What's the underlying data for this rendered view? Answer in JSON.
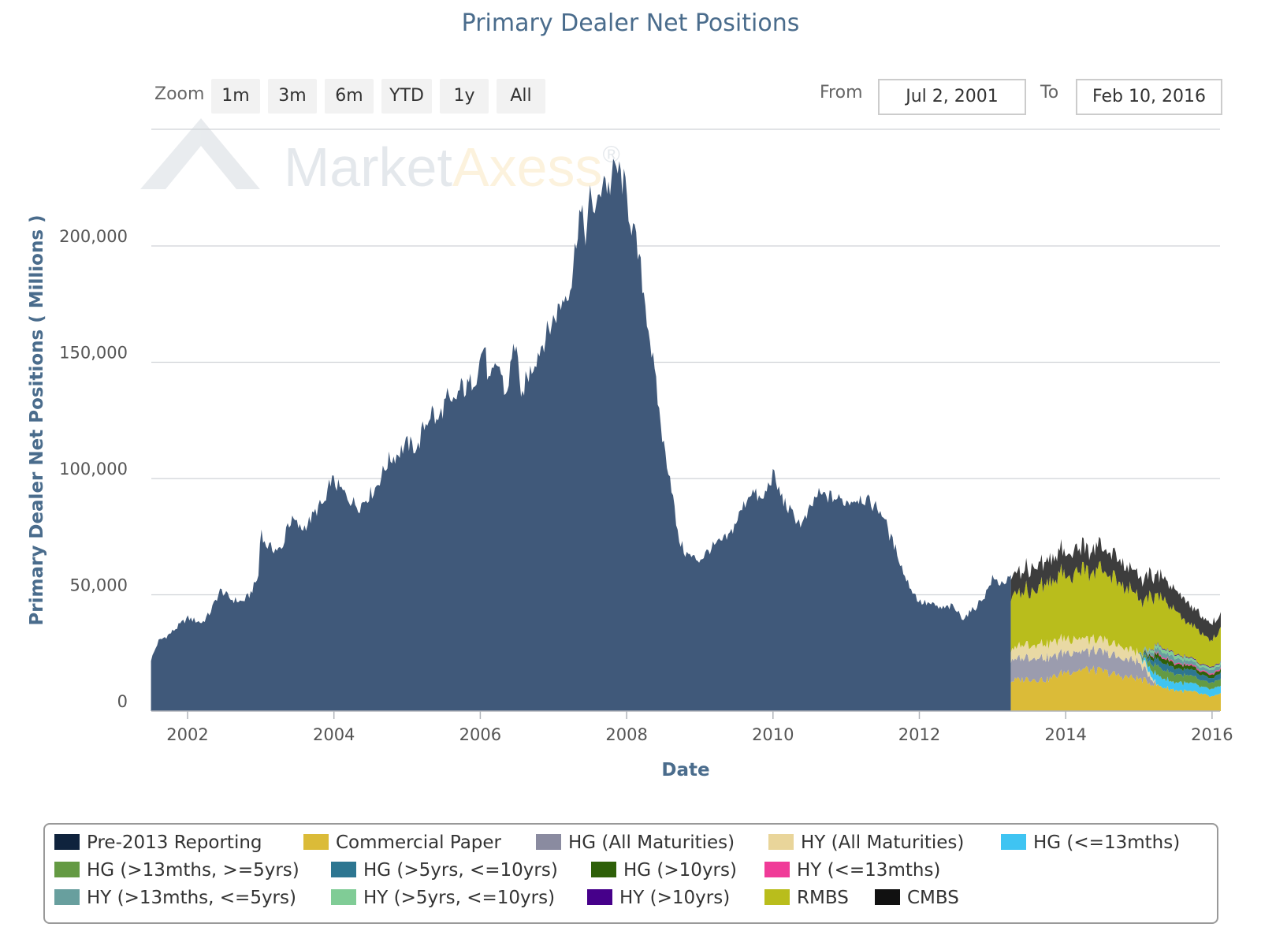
{
  "header": {
    "title": "Primary Dealer Net Positions",
    "zoom_label": "Zoom",
    "zoom_buttons": [
      "1m",
      "3m",
      "6m",
      "YTD",
      "1y",
      "All"
    ],
    "from_label": "From",
    "from_value": "Jul 2, 2001",
    "to_label": "To",
    "to_value": "Feb 10, 2016"
  },
  "watermark": {
    "text_main": "Market",
    "text_accent": "Axess",
    "mark": "®"
  },
  "chart_data": {
    "type": "area",
    "title": "Primary Dealer Net Positions",
    "xlabel": "Date",
    "ylabel": "Primary Dealer Net Positions ( Millions )",
    "xlim": [
      "2001-07-02",
      "2016-02-10"
    ],
    "ylim": [
      0,
      240000
    ],
    "x_ticks": [
      "2002",
      "2004",
      "2006",
      "2008",
      "2010",
      "2012",
      "2014",
      "2016"
    ],
    "y_ticks": [
      0,
      50000,
      100000,
      150000,
      200000
    ],
    "y_tick_labels": [
      "0",
      "50,000",
      "100,000",
      "150,000",
      "200,000"
    ],
    "grid": "horizontal",
    "legend_placement": "bottom",
    "stacked": true,
    "series": [
      {
        "name": "Pre-2013 Reporting",
        "color": "#40597a",
        "x": [
          2001.5,
          2001.6,
          2001.75,
          2002.0,
          2002.2,
          2002.3,
          2002.45,
          2002.6,
          2002.75,
          2002.85,
          2002.97,
          2003.0,
          2003.05,
          2003.15,
          2003.3,
          2003.35,
          2003.45,
          2003.55,
          2003.65,
          2003.8,
          2003.9,
          2003.95,
          2004.1,
          2004.25,
          2004.35,
          2004.45,
          2004.55,
          2004.6,
          2004.75,
          2004.85,
          2005.0,
          2005.15,
          2005.2,
          2005.35,
          2005.4,
          2005.55,
          2005.6,
          2005.75,
          2005.8,
          2005.95,
          2006.05,
          2006.12,
          2006.25,
          2006.35,
          2006.45,
          2006.5,
          2006.55,
          2006.6,
          2006.8,
          2006.95,
          2007.1,
          2007.25,
          2007.35,
          2007.45,
          2007.5,
          2007.6,
          2007.68,
          2007.75,
          2007.85,
          2007.95,
          2008.1,
          2008.2,
          2008.3,
          2008.4,
          2008.5,
          2008.6,
          2008.7,
          2008.8,
          2008.9,
          2009.0,
          2009.15,
          2009.25,
          2009.4,
          2009.55,
          2009.7,
          2009.85,
          2010.0,
          2010.05,
          2010.15,
          2010.25,
          2010.4,
          2010.5,
          2010.6,
          2010.8,
          2011.0,
          2011.2,
          2011.4,
          2011.5,
          2011.6,
          2011.7,
          2011.8,
          2011.9,
          2012.0,
          2012.15,
          2012.3,
          2012.45,
          2012.6,
          2012.75,
          2012.9,
          2013.0,
          2013.1,
          2013.2,
          2013.25
        ],
        "values": [
          22000,
          30000,
          33000,
          40000,
          38000,
          42000,
          52000,
          48000,
          47000,
          50000,
          58000,
          80000,
          72000,
          70000,
          69000,
          80000,
          82000,
          78000,
          81000,
          88000,
          90000,
          100000,
          95000,
          90000,
          88000,
          92000,
          95000,
          98000,
          108000,
          110000,
          115000,
          113000,
          120000,
          130000,
          123000,
          135000,
          130000,
          140000,
          138000,
          145000,
          158000,
          140000,
          150000,
          135000,
          155000,
          160000,
          130000,
          140000,
          155000,
          165000,
          175000,
          185000,
          215000,
          205000,
          220000,
          215000,
          232000,
          224000,
          234000,
          228000,
          205000,
          188000,
          165000,
          140000,
          115000,
          100000,
          75000,
          68000,
          66000,
          65000,
          70000,
          72000,
          75000,
          85000,
          95000,
          90000,
          102000,
          97000,
          90000,
          85000,
          80000,
          86000,
          93000,
          92000,
          90000,
          92000,
          88000,
          85000,
          75000,
          68000,
          58000,
          52000,
          47000,
          46000,
          44000,
          45000,
          40000,
          44000,
          50000,
          57000,
          55000,
          56000,
          57000
        ]
      },
      {
        "name": "Commercial Paper",
        "color": "#dbbb38",
        "x": [
          2013.25,
          2013.5,
          2013.75,
          2014.0,
          2014.25,
          2014.5,
          2014.75,
          2015.0,
          2015.25,
          2015.5,
          2015.75,
          2016.0,
          2016.12
        ],
        "values": [
          13000,
          14000,
          13500,
          17000,
          18000,
          17000,
          15000,
          14000,
          11000,
          9000,
          8000,
          6000,
          7000
        ]
      },
      {
        "name": "HG (All Maturities)",
        "color": "#9b9cae",
        "x": [
          2013.25,
          2013.5,
          2013.75,
          2014.0,
          2014.25,
          2014.5,
          2014.75,
          2015.0,
          2015.25,
          2015.5,
          2015.75,
          2016.0,
          2016.12
        ],
        "values": [
          9000,
          9500,
          9000,
          8500,
          8000,
          8000,
          8000,
          7000,
          0,
          0,
          0,
          0,
          0
        ]
      },
      {
        "name": "HY (All Maturities)",
        "color": "#e9d9a4",
        "x": [
          2013.25,
          2013.5,
          2013.75,
          2014.0,
          2014.25,
          2014.5,
          2014.75,
          2015.0,
          2015.25,
          2015.5,
          2015.75,
          2016.0,
          2016.12
        ],
        "values": [
          5000,
          5500,
          6000,
          6000,
          5500,
          5000,
          5000,
          4000,
          0,
          0,
          0,
          0,
          0
        ]
      },
      {
        "name": "HG (<=13mths)",
        "color": "#3fc4f2",
        "x": [
          2015.0,
          2015.25,
          2015.5,
          2015.75,
          2016.0,
          2016.12
        ],
        "values": [
          0,
          4000,
          3500,
          3500,
          3000,
          3500
        ]
      },
      {
        "name": "HG (>13mths, >=5yrs)",
        "color": "#649a43",
        "x": [
          2015.0,
          2015.25,
          2015.5,
          2015.75,
          2016.0,
          2016.12
        ],
        "values": [
          0,
          4000,
          3500,
          3000,
          2500,
          3000
        ]
      },
      {
        "name": "HG (>5yrs, <=10yrs)",
        "color": "#2d7691",
        "x": [
          2015.0,
          2015.25,
          2015.5,
          2015.75,
          2016.0,
          2016.12
        ],
        "values": [
          0,
          3000,
          2500,
          2500,
          2000,
          2500
        ]
      },
      {
        "name": "HG (>10yrs)",
        "color": "#2e6009",
        "x": [
          2015.0,
          2015.25,
          2015.5,
          2015.75,
          2016.0,
          2016.12
        ],
        "values": [
          0,
          2000,
          2000,
          1500,
          1500,
          1500
        ]
      },
      {
        "name": "HY (<=13mths)",
        "color": "#f03b98",
        "x": [
          2015.0,
          2015.25,
          2015.5,
          2015.75,
          2016.0,
          2016.12
        ],
        "values": [
          0,
          500,
          500,
          500,
          500,
          500
        ]
      },
      {
        "name": "HY (>13mths, <=5yrs)",
        "color": "#689f9e",
        "x": [
          2015.0,
          2015.25,
          2015.5,
          2015.75,
          2016.0,
          2016.12
        ],
        "values": [
          0,
          2000,
          2000,
          1500,
          1500,
          1500
        ]
      },
      {
        "name": "HY (>5yrs, <=10yrs)",
        "color": "#80cc96",
        "x": [
          2015.0,
          2015.25,
          2015.5,
          2015.75,
          2016.0,
          2016.12
        ],
        "values": [
          0,
          1500,
          1500,
          1000,
          1000,
          1000
        ]
      },
      {
        "name": "HY (>10yrs)",
        "color": "#46008a",
        "x": [
          2015.0,
          2015.25,
          2015.5,
          2015.75,
          2016.0,
          2016.12
        ],
        "values": [
          0,
          300,
          300,
          300,
          300,
          300
        ]
      },
      {
        "name": "RMBS",
        "color": "#b9bd1c",
        "x": [
          2013.25,
          2013.5,
          2013.75,
          2014.0,
          2014.25,
          2014.5,
          2014.75,
          2015.0,
          2015.25,
          2015.5,
          2015.75,
          2016.0,
          2016.12
        ],
        "values": [
          22000,
          24000,
          26000,
          28000,
          30000,
          30000,
          27000,
          24000,
          22000,
          18000,
          14000,
          12000,
          14000
        ]
      },
      {
        "name": "CMBS",
        "color": "#3d3d3d",
        "x": [
          2013.25,
          2013.5,
          2013.75,
          2014.0,
          2014.25,
          2014.5,
          2014.75,
          2015.0,
          2015.25,
          2015.5,
          2015.75,
          2016.0,
          2016.12
        ],
        "values": [
          9000,
          9500,
          9500,
          10000,
          10000,
          10000,
          9500,
          9000,
          9000,
          9000,
          8000,
          7000,
          6000
        ]
      }
    ]
  },
  "legend": [
    {
      "label": "Pre-2013 Reporting",
      "color": "#0f233d"
    },
    {
      "label": "Commercial Paper",
      "color": "#dbbb38"
    },
    {
      "label": "HG (All Maturities)",
      "color": "#8a8ba0"
    },
    {
      "label": "HY (All Maturities)",
      "color": "#e9d59a"
    },
    {
      "label": "HG (<=13mths)",
      "color": "#3fc4f2"
    },
    {
      "label": "HG (>13mths, >=5yrs)",
      "color": "#649a43"
    },
    {
      "label": "HG (>5yrs, <=10yrs)",
      "color": "#2d7691"
    },
    {
      "label": "HG (>10yrs)",
      "color": "#2e6009"
    },
    {
      "label": "HY (<=13mths)",
      "color": "#f03b98"
    },
    {
      "label": "HY (>13mths, <=5yrs)",
      "color": "#689f9e"
    },
    {
      "label": "HY (>5yrs, <=10yrs)",
      "color": "#80cc96"
    },
    {
      "label": "HY (>10yrs)",
      "color": "#46008a"
    },
    {
      "label": "RMBS",
      "color": "#b9bd1c"
    },
    {
      "label": "CMBS",
      "color": "#111111"
    }
  ]
}
